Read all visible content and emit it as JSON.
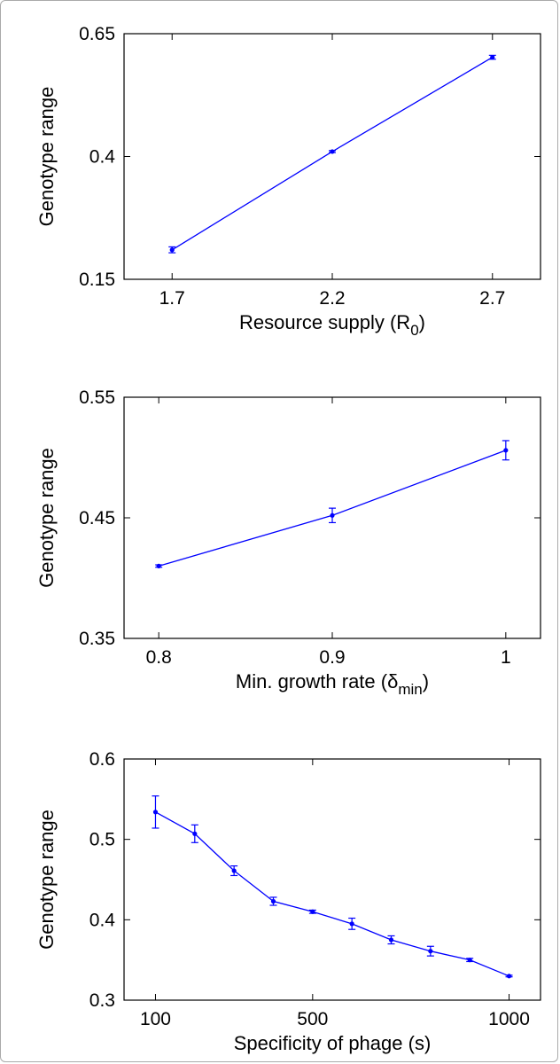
{
  "chart_data": [
    {
      "type": "line",
      "xlabel": "Resource supply (R0)",
      "xlabel_main": "Resource supply (R",
      "xlabel_sub": "0",
      "xlabel_close": ")",
      "ylabel": "Genotype range",
      "xlim": [
        1.55,
        2.85
      ],
      "ylim": [
        0.15,
        0.65
      ],
      "xticks": [
        1.7,
        2.2,
        2.7
      ],
      "xtick_labels": [
        "1.7",
        "2.2",
        "2.7"
      ],
      "yticks": [
        0.15,
        0.4,
        0.65
      ],
      "ytick_labels": [
        "0.15",
        "0.4",
        "0.65"
      ],
      "color": "#0000ff",
      "series": [
        {
          "x": [
            1.7,
            2.2,
            2.7
          ],
          "y": [
            0.21,
            0.41,
            0.602
          ],
          "err": [
            0.006,
            0.002,
            0.004
          ]
        }
      ]
    },
    {
      "type": "line",
      "xlabel": "Min. growth rate (δmin)",
      "xlabel_main": "Min. growth rate (δ",
      "xlabel_sub": "min",
      "xlabel_close": ")",
      "ylabel": "Genotype range",
      "xlim": [
        0.78,
        1.02
      ],
      "ylim": [
        0.35,
        0.55
      ],
      "xticks": [
        0.8,
        0.9,
        1.0
      ],
      "xtick_labels": [
        "0.8",
        "0.9",
        "1"
      ],
      "yticks": [
        0.35,
        0.45,
        0.55
      ],
      "ytick_labels": [
        "0.35",
        "0.45",
        "0.55"
      ],
      "color": "#0000ff",
      "series": [
        {
          "x": [
            0.8,
            0.9,
            1.0
          ],
          "y": [
            0.41,
            0.452,
            0.506
          ],
          "err": [
            0.001,
            0.006,
            0.008
          ]
        }
      ]
    },
    {
      "type": "line",
      "xlabel": "Specificity of phage (s)",
      "xlabel_main": "Specificity of phage (s)",
      "xlabel_sub": "",
      "xlabel_close": "",
      "ylabel": "Genotype range",
      "xlim": [
        20,
        1080
      ],
      "ylim": [
        0.3,
        0.6
      ],
      "xticks": [
        100,
        500,
        1000
      ],
      "xtick_labels": [
        "100",
        "500",
        "1000"
      ],
      "yticks": [
        0.3,
        0.4,
        0.5,
        0.6
      ],
      "ytick_labels": [
        "0.3",
        "0.4",
        "0.5",
        "0.6"
      ],
      "color": "#0000ff",
      "series": [
        {
          "x": [
            100,
            200,
            300,
            400,
            500,
            600,
            700,
            800,
            900,
            1000
          ],
          "y": [
            0.534,
            0.507,
            0.461,
            0.423,
            0.41,
            0.395,
            0.375,
            0.361,
            0.35,
            0.33
          ],
          "err": [
            0.02,
            0.011,
            0.006,
            0.005,
            0.002,
            0.007,
            0.005,
            0.006,
            0.002,
            0.001
          ]
        }
      ]
    }
  ]
}
